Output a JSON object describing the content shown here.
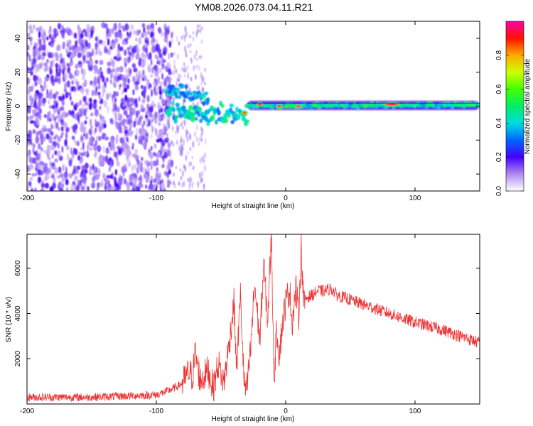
{
  "title": "YM08.2026.073.04.11.R21",
  "chart_data": [
    {
      "type": "heatmap",
      "xlabel": "Height of straight line (km)",
      "ylabel": "Frequency (Hz)",
      "xlim": [
        -200,
        150
      ],
      "ylim": [
        -50,
        50
      ],
      "x_ticks": [
        -200,
        -100,
        0,
        100
      ],
      "y_ticks": [
        -40,
        -20,
        0,
        20,
        40
      ],
      "colorbar": {
        "label": "Normalized spectral amplitude",
        "range": [
          0,
          1
        ],
        "ticks": [
          0.0,
          0.2,
          0.4,
          0.6,
          0.8
        ],
        "tick_labels": [
          "0.0",
          "0.2",
          "0.4",
          "0.6",
          "0.8"
        ]
      },
      "regions": [
        {
          "name": "noise",
          "x_range": [
            -200,
            -88
          ],
          "freq_range": [
            -50,
            48
          ],
          "amplitude": 0.15
        },
        {
          "name": "upper-branch",
          "x_range": [
            -92,
            -60
          ],
          "freq_center": [
            10,
            4
          ],
          "amplitude": 0.35
        },
        {
          "name": "transition",
          "x_range": [
            -92,
            -30
          ],
          "freq_center": [
            -3,
            -6
          ],
          "amplitude": 0.4
        },
        {
          "name": "line",
          "x_range": [
            -30,
            150
          ],
          "freq_center": [
            0,
            1
          ],
          "amplitude": 0.45
        }
      ],
      "peaks": [
        {
          "x": -32,
          "freq": -4,
          "amplitude": 0.85
        },
        {
          "x": -20,
          "freq": 1,
          "amplitude": 0.95
        },
        {
          "x": -5,
          "freq": 0,
          "amplitude": 0.95
        },
        {
          "x": 10,
          "freq": 0,
          "amplitude": 1.0
        },
        {
          "x": 82,
          "freq": 1,
          "amplitude": 0.95
        }
      ]
    },
    {
      "type": "line",
      "xlabel": "Height of straight line (km)",
      "ylabel": "SNR (10 * v/v)",
      "xlim": [
        -200,
        150
      ],
      "ylim": [
        0,
        7500
      ],
      "x_ticks": [
        -200,
        -100,
        0,
        100
      ],
      "y_ticks": [
        2000,
        4000,
        6000
      ],
      "color": "#ee3333",
      "series": [
        {
          "name": "SNR",
          "x": [
            -200,
            -150,
            -100,
            -90,
            -80,
            -75,
            -72,
            -70,
            -66,
            -60,
            -56,
            -52,
            -48,
            -44,
            -40,
            -38,
            -35,
            -32,
            -30,
            -27,
            -24,
            -20,
            -17,
            -14,
            -11,
            -9,
            -7,
            -5,
            -2,
            0,
            3,
            5,
            8,
            10,
            12,
            14,
            16,
            20,
            25,
            30,
            35,
            40,
            50,
            60,
            80,
            100,
            120,
            140,
            150
          ],
          "y": [
            300,
            300,
            400,
            600,
            900,
            1400,
            1200,
            2300,
            1000,
            1500,
            700,
            1800,
            900,
            2500,
            4500,
            1500,
            4800,
            800,
            600,
            2500,
            5300,
            2800,
            6200,
            3700,
            7500,
            1000,
            3300,
            2200,
            3800,
            4500,
            5100,
            3600,
            5100,
            3900,
            6900,
            4400,
            4700,
            4800,
            5000,
            5000,
            5100,
            4800,
            4600,
            4400,
            4000,
            3600,
            3300,
            2900,
            2700
          ]
        }
      ]
    }
  ]
}
